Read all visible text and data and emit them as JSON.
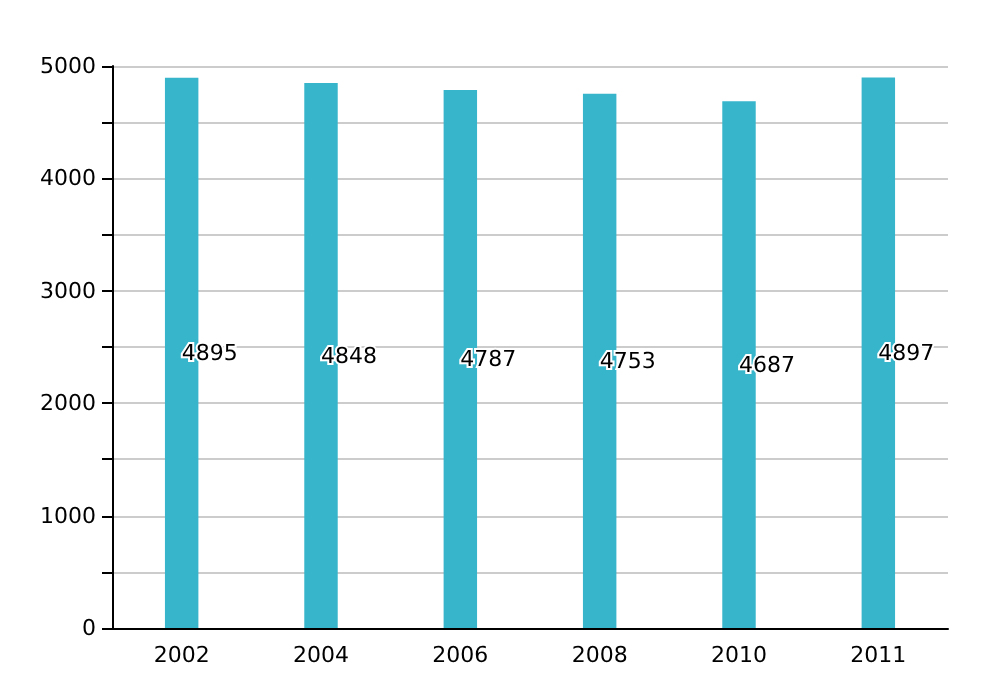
{
  "chart_data": {
    "type": "bar",
    "categories": [
      "2002",
      "2004",
      "2006",
      "2008",
      "2010",
      "2011"
    ],
    "values": [
      4895,
      4848,
      4787,
      4753,
      4687,
      4897
    ],
    "color": "#36b5cb",
    "data_labels": true,
    "ylim": [
      0,
      5000
    ],
    "yticks": [
      0,
      {
        "value": 500,
        "label": null
      },
      1000,
      {
        "value": 1500,
        "label": null
      },
      2000,
      {
        "value": 2500,
        "label": null
      },
      3000,
      {
        "value": 3500,
        "label": null
      },
      4000,
      {
        "value": 4500,
        "label": null
      },
      5000
    ],
    "grid": "y"
  }
}
